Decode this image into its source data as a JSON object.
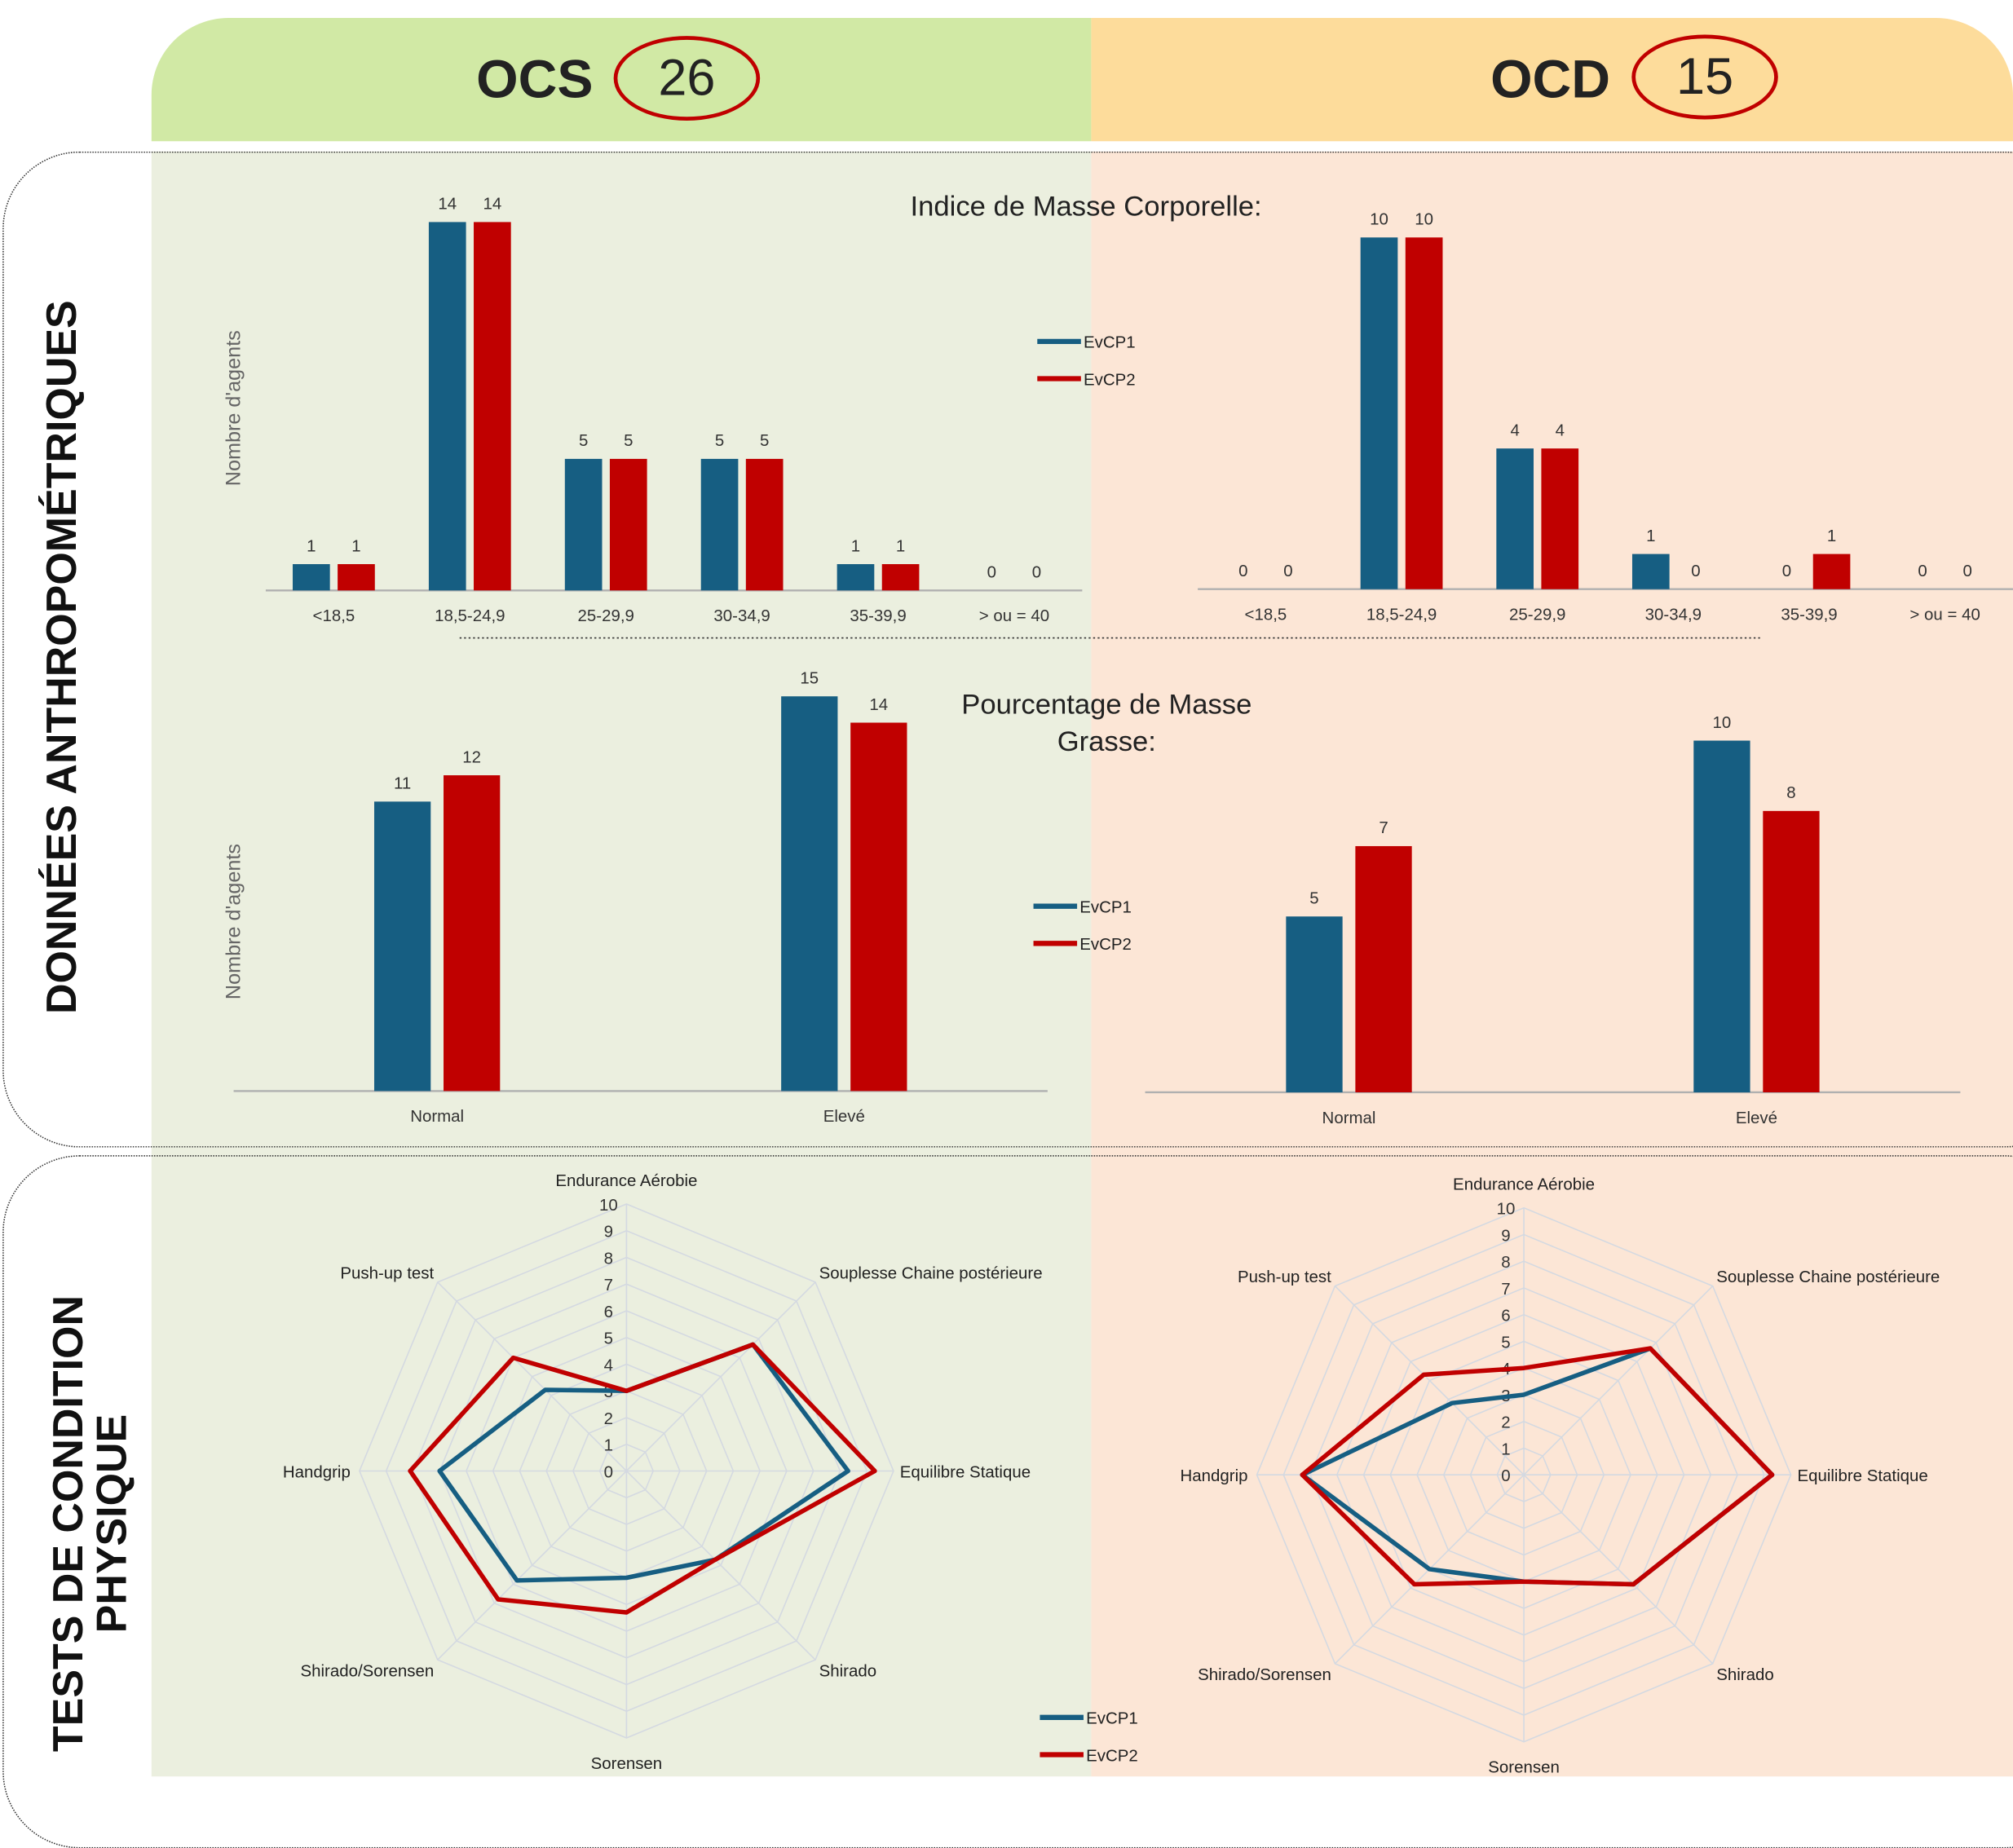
{
  "groups": {
    "left": {
      "name": "OCS",
      "count": "26"
    },
    "right": {
      "name": "OCD",
      "count": "15"
    }
  },
  "sections": {
    "anthropometric": "DONNÉES ANTHROPOMÉTRIQUES",
    "physical": "TESTS DE CONDITION PHYSIQUE"
  },
  "colors": {
    "EvCP1": "#165e82",
    "EvCP2": "#c00000",
    "ocs_header": "#d1e9a5",
    "ocd_header": "#fddc9b",
    "ocs_bg": "#ebefdf",
    "ocd_bg": "#fce6d6"
  },
  "labels": {
    "imc_title": "Indice de Masse Corporelle:",
    "mg_title": "Pourcentage de Masse Grasse:",
    "ylabel": "Nombre d'agents"
  },
  "chart_data": [
    {
      "id": "imc-ocs",
      "type": "bar",
      "title": "Indice de Masse Corporelle:",
      "ylabel": "Nombre d'agents",
      "categories": [
        "<18,5",
        "18,5-24,9",
        "25-29,9",
        "30-34,9",
        "35-39,9",
        "> ou = 40"
      ],
      "series": [
        {
          "name": "EvCP1",
          "values": [
            1,
            14,
            5,
            5,
            1,
            0
          ]
        },
        {
          "name": "EvCP2",
          "values": [
            1,
            14,
            5,
            5,
            1,
            0
          ]
        }
      ],
      "legend": "right"
    },
    {
      "id": "imc-ocd",
      "type": "bar",
      "categories": [
        "<18,5",
        "18,5-24,9",
        "25-29,9",
        "30-34,9",
        "35-39,9",
        "> ou = 40"
      ],
      "series": [
        {
          "name": "EvCP1",
          "values": [
            0,
            10,
            4,
            1,
            0,
            0
          ]
        },
        {
          "name": "EvCP2",
          "values": [
            0,
            10,
            4,
            0,
            1,
            0
          ]
        }
      ]
    },
    {
      "id": "mg-ocs",
      "type": "bar",
      "title": "Pourcentage de Masse Grasse:",
      "ylabel": "Nombre d'agents",
      "categories": [
        "Normal",
        "Elevé"
      ],
      "series": [
        {
          "name": "EvCP1",
          "values": [
            11,
            15
          ]
        },
        {
          "name": "EvCP2",
          "values": [
            12,
            14
          ]
        }
      ],
      "legend": "right"
    },
    {
      "id": "mg-ocd",
      "type": "bar",
      "categories": [
        "Normal",
        "Elevé"
      ],
      "series": [
        {
          "name": "EvCP1",
          "values": [
            5,
            10
          ]
        },
        {
          "name": "EvCP2",
          "values": [
            7,
            8
          ]
        }
      ]
    },
    {
      "id": "radar-ocs",
      "type": "radar",
      "axes": [
        "Endurance Aérobie",
        "Souplesse Chaine postérieure",
        "Equilibre Statique",
        "Shirado",
        "Sorensen",
        "Shirado/Sorensen",
        "Handgrip",
        "Push-up test"
      ],
      "range": [
        0,
        10
      ],
      "ticks": [
        "0",
        "1",
        "2",
        "3",
        "4",
        "5",
        "6",
        "7",
        "8",
        "9",
        "10"
      ],
      "series": [
        {
          "name": "EvCP1",
          "values": [
            3,
            6.7,
            8.3,
            4.7,
            4,
            5.8,
            7,
            4.3
          ]
        },
        {
          "name": "EvCP2",
          "values": [
            3,
            6.7,
            9.3,
            4.7,
            5.3,
            6.8,
            8.1,
            6
          ]
        }
      ],
      "legend": "bottom-right"
    },
    {
      "id": "radar-ocd",
      "type": "radar",
      "axes": [
        "Endurance Aérobie",
        "Souplesse Chaine postérieure",
        "Equilibre Statique",
        "Shirado",
        "Sorensen",
        "Shirado/Sorensen",
        "Handgrip",
        "Push-up test"
      ],
      "range": [
        0,
        10
      ],
      "ticks": [
        "0",
        "1",
        "2",
        "3",
        "4",
        "5",
        "6",
        "7",
        "8",
        "9",
        "10"
      ],
      "series": [
        {
          "name": "EvCP1",
          "values": [
            3,
            6.7,
            9.3,
            5.8,
            4,
            5,
            8.3,
            3.8
          ]
        },
        {
          "name": "EvCP2",
          "values": [
            4,
            6.7,
            9.3,
            5.8,
            4,
            5.8,
            8.3,
            5.3
          ]
        }
      ]
    }
  ]
}
